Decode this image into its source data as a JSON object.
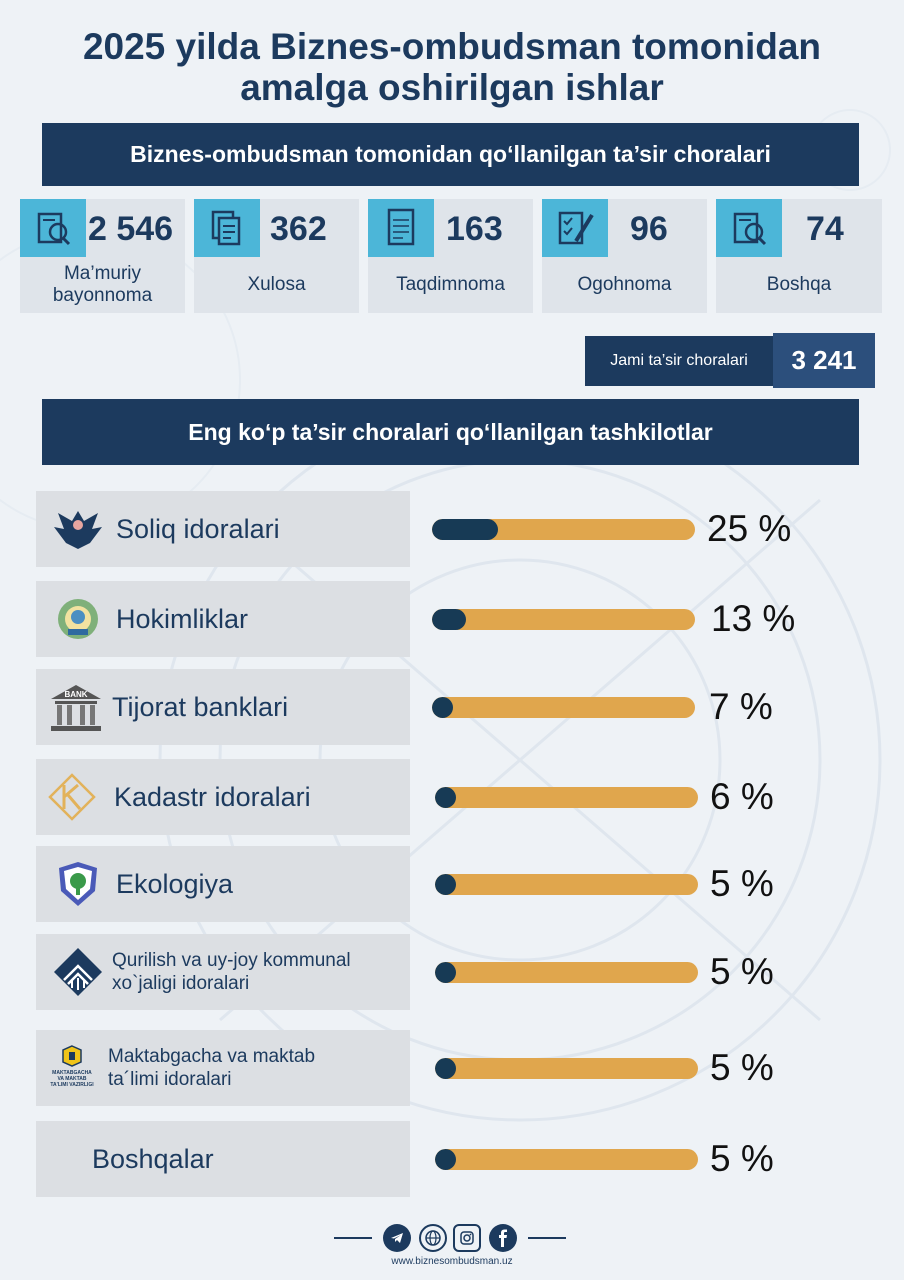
{
  "title_line1": "2025 yilda Biznes-ombudsman tomonidan",
  "title_line2": "amalga oshirilgan ishlar",
  "section1_title": "Biznes-ombudsman tomonidan qo‘llanilgan ta’sir choralari",
  "stats": [
    {
      "icon": "document-search-icon",
      "value": "2 546",
      "label_line1": "Ma’muriy",
      "label_line2": "bayonnoma"
    },
    {
      "icon": "documents-icon",
      "value": "362",
      "label_line1": "Xulosa",
      "label_line2": ""
    },
    {
      "icon": "paper-icon",
      "value": "163",
      "label_line1": "Taqdimnoma",
      "label_line2": ""
    },
    {
      "icon": "checklist-pen-icon",
      "value": "96",
      "label_line1": "Ogohnoma",
      "label_line2": ""
    },
    {
      "icon": "document-search-icon",
      "value": "74",
      "label_line1": "Boshqa",
      "label_line2": ""
    }
  ],
  "total": {
    "label": "Jami ta’sir choralari",
    "value": "3 241"
  },
  "section2_title": "Eng ko‘p ta’sir choralari qo‘llanilgan tashkilotlar",
  "orgs": [
    {
      "icon": "tax-eagle-icon",
      "name_line1": "Soliq idoralari",
      "name_line2": "",
      "percent_label": "25 %",
      "share": 0.25
    },
    {
      "icon": "state-emblem-icon",
      "name_line1": "Hokimliklar",
      "name_line2": "",
      "percent_label": "13 %",
      "share": 0.13
    },
    {
      "icon": "bank-building-icon",
      "name_line1": "Tijorat banklari",
      "name_line2": "",
      "percent_label": "7 %",
      "share": 0.07
    },
    {
      "icon": "cadastre-logo-icon",
      "name_line1": "Kadastr idoralari",
      "name_line2": "",
      "percent_label": "6 %",
      "share": 0.06
    },
    {
      "icon": "ecology-shield-icon",
      "name_line1": "Ekologiya",
      "name_line2": "",
      "percent_label": "5 %",
      "share": 0.05
    },
    {
      "icon": "construction-logo-icon",
      "name_line1": "Qurilish va uy-joy kommunal",
      "name_line2": "xo`jaligi idoralari",
      "percent_label": "5 %",
      "share": 0.05
    },
    {
      "icon": "education-ministry-icon",
      "name_line1": "Maktabgacha va maktab",
      "name_line2": "ta´limi idoralari",
      "percent_label": "5 %",
      "share": 0.05
    },
    {
      "icon": "",
      "name_line1": "Boshqalar",
      "name_line2": "",
      "percent_label": "5 %",
      "share": 0.05
    }
  ],
  "edu_logo_text_line1": "MAKTABGACHA",
  "edu_logo_text_line2": "VA MAKTAB",
  "edu_logo_text_line3": "TA'LIMI VAZIRLIGI",
  "bank_logo_text": "BANK",
  "footer_social": [
    "telegram-icon",
    "web-icon",
    "instagram-icon",
    "facebook-icon"
  ],
  "footer_url": "www.biznesombudsman.uz",
  "colors": {
    "navy": "#1c3a5e",
    "accent": "#4cb6d8",
    "bar": "#e0a64d",
    "bar_fill": "#173a55"
  }
}
